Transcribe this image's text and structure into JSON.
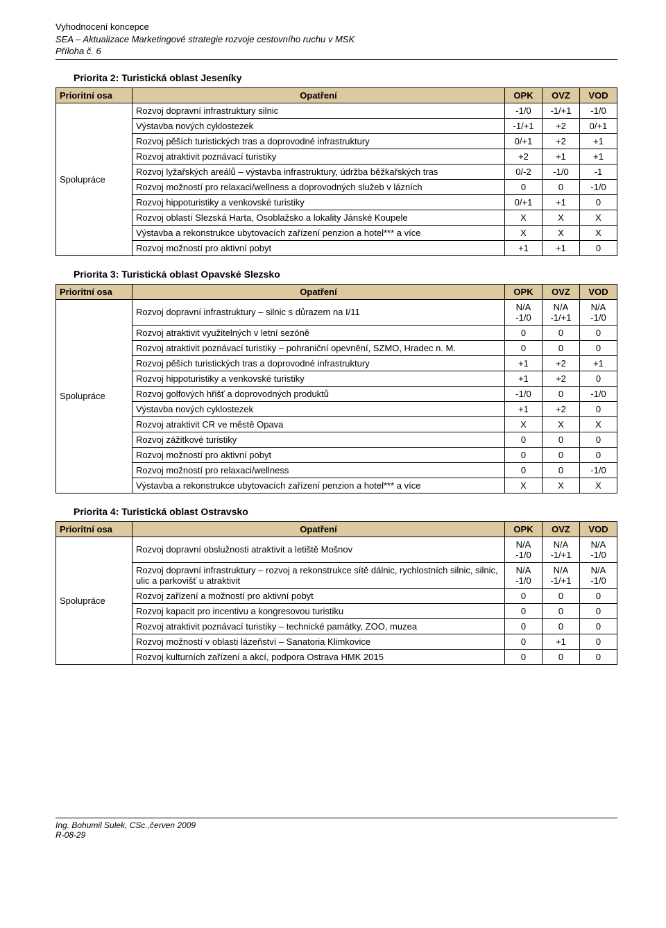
{
  "header": {
    "line1": "Vyhodnocení koncepce",
    "line2": "SEA – Aktualizace Marketingové strategie rozvoje cestovního ruchu v MSK",
    "line3": "Příloha č. 6"
  },
  "colors": {
    "header_bg": "#dcc9a0",
    "border": "#000000",
    "text": "#000000",
    "page_bg": "#ffffff"
  },
  "column_headers": {
    "axis": "Prioritní osa",
    "measure": "Opatření",
    "opk": "OPK",
    "ovz": "OVZ",
    "vod": "VOD"
  },
  "sections": [
    {
      "title": "Priorita 2: Turistická oblast Jeseníky",
      "axis": "Spolupráce",
      "rows": [
        {
          "m": "Rozvoj dopravní infrastruktury silnic",
          "opk": "-1/0",
          "ovz": "-1/+1",
          "vod": "-1/0"
        },
        {
          "m": "Výstavba nových cyklostezek",
          "opk": "-1/+1",
          "ovz": "+2",
          "vod": "0/+1"
        },
        {
          "m": "Rozvoj pěších turistických tras a doprovodné infrastruktury",
          "opk": "0/+1",
          "ovz": "+2",
          "vod": "+1"
        },
        {
          "m": "Rozvoj atraktivit poznávací turistiky",
          "opk": "+2",
          "ovz": "+1",
          "vod": "+1"
        },
        {
          "m": "Rozvoj lyžařských areálů – výstavba infrastruktury, údržba běžkařských tras",
          "opk": "0/-2",
          "ovz": "-1/0",
          "vod": "-1"
        },
        {
          "m": "Rozvoj možností pro relaxaci/wellness a doprovodných služeb v lázních",
          "opk": "0",
          "ovz": "0",
          "vod": "-1/0"
        },
        {
          "m": "Rozvoj hippoturistiky a venkovské turistiky",
          "opk": "0/+1",
          "ovz": "+1",
          "vod": "0"
        },
        {
          "m": "Rozvoj oblastí Slezská Harta, Osoblažsko a lokality Jánské Koupele",
          "opk": "X",
          "ovz": "X",
          "vod": "X"
        },
        {
          "m": "Výstavba a rekonstrukce ubytovacích zařízení penzion a hotel*** a více",
          "opk": "X",
          "ovz": "X",
          "vod": "X"
        },
        {
          "m": "Rozvoj možností pro aktivní pobyt",
          "opk": "+1",
          "ovz": "+1",
          "vod": "0"
        }
      ]
    },
    {
      "title": "Priorita 3: Turistická oblast Opavské Slezsko",
      "axis": "Spolupráce",
      "rows": [
        {
          "m": "Rozvoj dopravní infrastruktury – silnic s důrazem na I/11",
          "opk": "N/A\n-1/0",
          "ovz": "N/A\n-1/+1",
          "vod": "N/A\n-1/0"
        },
        {
          "m": "Rozvoj atraktivit využitelných v letní sezóně",
          "opk": "0",
          "ovz": "0",
          "vod": "0"
        },
        {
          "m": "Rozvoj atraktivit poznávací turistiky – pohraniční opevnění, SZMO, Hradec n. M.",
          "opk": "0",
          "ovz": "0",
          "vod": "0"
        },
        {
          "m": "Rozvoj pěších turistických tras a doprovodné infrastruktury",
          "opk": "+1",
          "ovz": "+2",
          "vod": "+1"
        },
        {
          "m": "Rozvoj hippoturistiky a venkovské turistiky",
          "opk": "+1",
          "ovz": "+2",
          "vod": "0"
        },
        {
          "m": "Rozvoj golfových hřišť a doprovodných produktů",
          "opk": "-1/0",
          "ovz": "0",
          "vod": "-1/0"
        },
        {
          "m": "Výstavba nových cyklostezek",
          "opk": "+1",
          "ovz": "+2",
          "vod": "0"
        },
        {
          "m": "Rozvoj atraktivit CR ve městě Opava",
          "opk": "X",
          "ovz": "X",
          "vod": "X"
        },
        {
          "m": "Rozvoj zážitkové turistiky",
          "opk": "0",
          "ovz": "0",
          "vod": "0"
        },
        {
          "m": "Rozvoj možností pro aktivní pobyt",
          "opk": "0",
          "ovz": "0",
          "vod": "0"
        },
        {
          "m": "Rozvoj možností pro relaxaci/wellness",
          "opk": "0",
          "ovz": "0",
          "vod": "-1/0"
        },
        {
          "m": "Výstavba a rekonstrukce ubytovacích zařízení penzion a hotel*** a více",
          "opk": "X",
          "ovz": "X",
          "vod": "X"
        }
      ]
    },
    {
      "title": "Priorita 4: Turistická oblast Ostravsko",
      "axis": "Spolupráce",
      "rows": [
        {
          "m": "Rozvoj dopravní obslužnosti atraktivit a letiště Mošnov",
          "opk": "N/A\n-1/0",
          "ovz": "N/A\n-1/+1",
          "vod": "N/A\n-1/0"
        },
        {
          "m": "Rozvoj dopravní infrastruktury – rozvoj a rekonstrukce sítě dálnic, rychlostních silnic, silnic, ulic a parkovišť u atraktivit",
          "opk": "N/A\n-1/0",
          "ovz": "N/A\n-1/+1",
          "vod": "N/A\n-1/0"
        },
        {
          "m": "Rozvoj zařízení a možností pro aktivní pobyt",
          "opk": "0",
          "ovz": "0",
          "vod": "0"
        },
        {
          "m": "Rozvoj kapacit pro incentivu a kongresovou turistiku",
          "opk": "0",
          "ovz": "0",
          "vod": "0"
        },
        {
          "m": "Rozvoj atraktivit poznávací turistiky – technické památky, ZOO, muzea",
          "opk": "0",
          "ovz": "0",
          "vod": "0"
        },
        {
          "m": "Rozvoj možností v oblasti lázeňství – Sanatoria Klimkovice",
          "opk": "0",
          "ovz": "+1",
          "vod": "0"
        },
        {
          "m": "Rozvoj kulturních zařízení a akcí, podpora Ostrava HMK 2015",
          "opk": "0",
          "ovz": "0",
          "vod": "0"
        }
      ]
    }
  ],
  "footer": {
    "line1": "Ing. Bohumil Sulek, CSc.,červen 2009",
    "line2": "R-08-29"
  }
}
